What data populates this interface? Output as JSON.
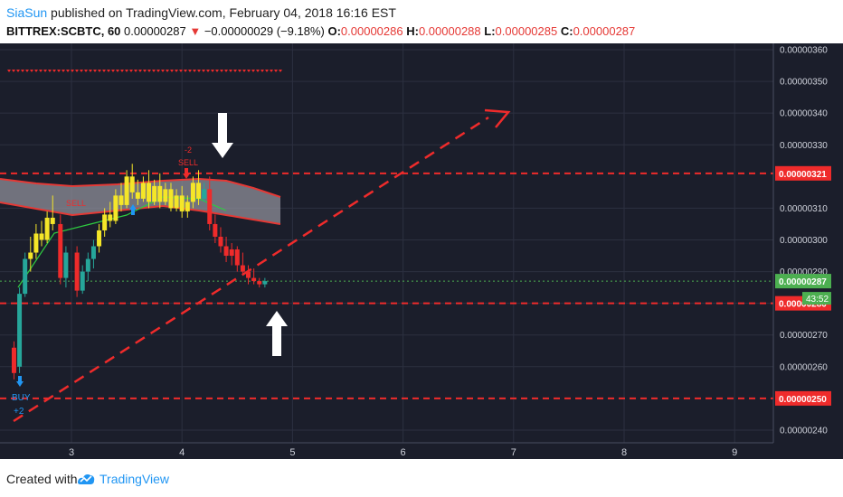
{
  "header": {
    "user": "SiaSun",
    "published": " published on TradingView.com, February 04, 2018 16:16 EST",
    "symbol": "BITTREX:SCBTC, 60",
    "price": "0.00000287",
    "change_arrow": "▼",
    "change": "−0.00000029 (−9.18%)",
    "o_label": "O:",
    "o_value": "0.00000286",
    "h_label": "H:",
    "h_value": "0.00000288",
    "l_label": "L:",
    "l_value": "0.00000285",
    "c_label": "C:",
    "c_value": "0.00000287"
  },
  "colors": {
    "bg": "#1b1e2b",
    "grid": "#2c3040",
    "red": "#ef2b2b",
    "green": "#26a69a",
    "yellow": "#f5e628",
    "accent": "#2196f3"
  },
  "chart_data": {
    "type": "candlestick",
    "x_ticks": [
      "3",
      "4",
      "5",
      "6",
      "7",
      "8",
      "9"
    ],
    "y_ticks": [
      "0.00000360",
      "0.00000350",
      "0.00000340",
      "0.00000330",
      "0.00000310",
      "0.00000300",
      "0.00000290",
      "0.00000280",
      "0.00000270",
      "0.00000260",
      "0.00000240"
    ],
    "ylim": [
      2.36e-06,
      3.62e-06
    ],
    "price_labels": [
      {
        "value": 3.21e-06,
        "text": "0.00000321",
        "color": "#ef2b2b"
      },
      {
        "value": 2.87e-06,
        "text": "0.00000287",
        "color": "#4caf50"
      },
      {
        "value": 2.8e-06,
        "text": "0.00000280",
        "color": "#ef2b2b"
      },
      {
        "value": 2.5e-06,
        "text": "0.00000250",
        "color": "#ef2b2b"
      }
    ],
    "countdown": "43:52",
    "horizontal_lines": [
      3.21e-06,
      2.8e-06,
      2.5e-06
    ],
    "annotations": [
      "SELL",
      "SELL",
      "BUY",
      "+2",
      "-2"
    ],
    "candles": [
      {
        "x": 2.48,
        "o": 258,
        "h": 268,
        "l": 256,
        "c": 266,
        "col": "red"
      },
      {
        "x": 2.53,
        "o": 260,
        "h": 285,
        "l": 258,
        "c": 283,
        "col": "green"
      },
      {
        "x": 2.58,
        "o": 283,
        "h": 296,
        "l": 282,
        "c": 294,
        "col": "green"
      },
      {
        "x": 2.63,
        "o": 294,
        "h": 301,
        "l": 290,
        "c": 296,
        "col": "yellow"
      },
      {
        "x": 2.68,
        "o": 296,
        "h": 305,
        "l": 294,
        "c": 302,
        "col": "yellow"
      },
      {
        "x": 2.73,
        "o": 302,
        "h": 306,
        "l": 298,
        "c": 300,
        "col": "yellow"
      },
      {
        "x": 2.78,
        "o": 300,
        "h": 309,
        "l": 299,
        "c": 307,
        "col": "yellow"
      },
      {
        "x": 2.83,
        "o": 307,
        "h": 314,
        "l": 303,
        "c": 305,
        "col": "yellow"
      },
      {
        "x": 2.9,
        "o": 305,
        "h": 308,
        "l": 286,
        "c": 288,
        "col": "red"
      },
      {
        "x": 2.95,
        "o": 288,
        "h": 298,
        "l": 285,
        "c": 296,
        "col": "green"
      },
      {
        "x": 3.05,
        "o": 296,
        "h": 298,
        "l": 282,
        "c": 284,
        "col": "red"
      },
      {
        "x": 3.1,
        "o": 284,
        "h": 292,
        "l": 283,
        "c": 290,
        "col": "green"
      },
      {
        "x": 3.15,
        "o": 290,
        "h": 296,
        "l": 287,
        "c": 294,
        "col": "green"
      },
      {
        "x": 3.2,
        "o": 294,
        "h": 300,
        "l": 291,
        "c": 298,
        "col": "green"
      },
      {
        "x": 3.25,
        "o": 298,
        "h": 305,
        "l": 296,
        "c": 303,
        "col": "yellow"
      },
      {
        "x": 3.3,
        "o": 303,
        "h": 310,
        "l": 301,
        "c": 308,
        "col": "yellow"
      },
      {
        "x": 3.35,
        "o": 308,
        "h": 312,
        "l": 304,
        "c": 306,
        "col": "yellow"
      },
      {
        "x": 3.4,
        "o": 306,
        "h": 316,
        "l": 305,
        "c": 314,
        "col": "yellow"
      },
      {
        "x": 3.45,
        "o": 314,
        "h": 318,
        "l": 309,
        "c": 311,
        "col": "yellow"
      },
      {
        "x": 3.5,
        "o": 311,
        "h": 322,
        "l": 310,
        "c": 320,
        "col": "yellow"
      },
      {
        "x": 3.55,
        "o": 320,
        "h": 324,
        "l": 313,
        "c": 315,
        "col": "yellow"
      },
      {
        "x": 3.6,
        "o": 315,
        "h": 319,
        "l": 311,
        "c": 313,
        "col": "yellow"
      },
      {
        "x": 3.65,
        "o": 313,
        "h": 320,
        "l": 312,
        "c": 318,
        "col": "yellow"
      },
      {
        "x": 3.7,
        "o": 318,
        "h": 322,
        "l": 310,
        "c": 312,
        "col": "yellow"
      },
      {
        "x": 3.75,
        "o": 312,
        "h": 319,
        "l": 311,
        "c": 317,
        "col": "yellow"
      },
      {
        "x": 3.8,
        "o": 317,
        "h": 321,
        "l": 310,
        "c": 312,
        "col": "yellow"
      },
      {
        "x": 3.85,
        "o": 312,
        "h": 318,
        "l": 311,
        "c": 316,
        "col": "yellow"
      },
      {
        "x": 3.9,
        "o": 316,
        "h": 318,
        "l": 309,
        "c": 310,
        "col": "yellow"
      },
      {
        "x": 3.95,
        "o": 310,
        "h": 316,
        "l": 309,
        "c": 314,
        "col": "yellow"
      },
      {
        "x": 4.0,
        "o": 314,
        "h": 317,
        "l": 307,
        "c": 309,
        "col": "yellow"
      },
      {
        "x": 4.05,
        "o": 309,
        "h": 314,
        "l": 307,
        "c": 312,
        "col": "yellow"
      },
      {
        "x": 4.1,
        "o": 312,
        "h": 320,
        "l": 310,
        "c": 318,
        "col": "yellow"
      },
      {
        "x": 4.15,
        "o": 318,
        "h": 322,
        "l": 311,
        "c": 313,
        "col": "yellow"
      },
      {
        "x": 4.2,
        "o": 313,
        "h": 318,
        "l": 312,
        "c": 316,
        "col": "green"
      },
      {
        "x": 4.25,
        "o": 316,
        "h": 320,
        "l": 303,
        "c": 305,
        "col": "red"
      },
      {
        "x": 4.3,
        "o": 305,
        "h": 308,
        "l": 299,
        "c": 301,
        "col": "red"
      },
      {
        "x": 4.35,
        "o": 301,
        "h": 304,
        "l": 296,
        "c": 298,
        "col": "red"
      },
      {
        "x": 4.4,
        "o": 298,
        "h": 301,
        "l": 293,
        "c": 295,
        "col": "red"
      },
      {
        "x": 4.45,
        "o": 295,
        "h": 299,
        "l": 292,
        "c": 297,
        "col": "red"
      },
      {
        "x": 4.5,
        "o": 297,
        "h": 298,
        "l": 290,
        "c": 292,
        "col": "red"
      },
      {
        "x": 4.55,
        "o": 292,
        "h": 296,
        "l": 289,
        "c": 290,
        "col": "red"
      },
      {
        "x": 4.6,
        "o": 290,
        "h": 292,
        "l": 286,
        "c": 288,
        "col": "red"
      },
      {
        "x": 4.65,
        "o": 288,
        "h": 291,
        "l": 286,
        "c": 287,
        "col": "red"
      },
      {
        "x": 4.7,
        "o": 287,
        "h": 288,
        "l": 285,
        "c": 286,
        "col": "red"
      },
      {
        "x": 4.75,
        "o": 286,
        "h": 288,
        "l": 285,
        "c": 287,
        "col": "green"
      }
    ]
  },
  "footer": {
    "created_with": "Created with",
    "brand": "TradingView"
  }
}
